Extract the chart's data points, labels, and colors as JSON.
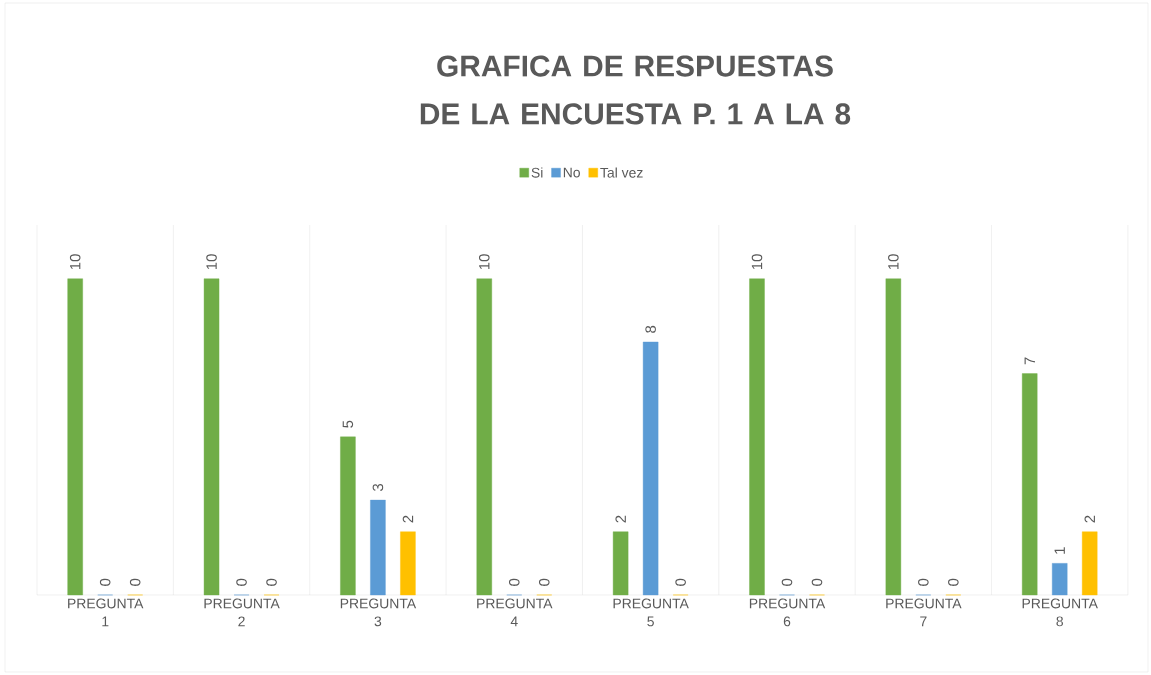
{
  "chart_data": {
    "type": "bar",
    "title": "GRAFICA DE RESPUESTAS DE LA ENCUESTA P. 1 A LA 8",
    "categories": [
      "PREGUNTA 1",
      "PREGUNTA 2",
      "PREGUNTA 3",
      "PREGUNTA 4",
      "PREGUNTA 5",
      "PREGUNTA 6",
      "PREGUNTA 7",
      "PREGUNTA 8"
    ],
    "series": [
      {
        "name": "Si",
        "color": "#70ad47",
        "values": [
          10,
          10,
          5,
          10,
          2,
          10,
          10,
          7
        ]
      },
      {
        "name": "No",
        "color": "#5b9bd5",
        "values": [
          0,
          0,
          3,
          0,
          8,
          0,
          0,
          1
        ]
      },
      {
        "name": "Tal vez",
        "color": "#ffc000",
        "values": [
          0,
          0,
          2,
          0,
          0,
          0,
          0,
          2
        ]
      }
    ],
    "data_labels": true,
    "legend": "top",
    "grid": "x"
  }
}
